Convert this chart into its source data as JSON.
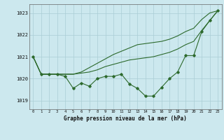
{
  "title": "Graphe pression niveau de la mer (hPa)",
  "bg_color": "#cce8ee",
  "grid_color": "#aacdd5",
  "line_color": "#2d6a2d",
  "x_labels": [
    "0",
    "1",
    "2",
    "3",
    "4",
    "5",
    "6",
    "7",
    "8",
    "9",
    "10",
    "11",
    "12",
    "13",
    "14",
    "15",
    "16",
    "17",
    "18",
    "19",
    "20",
    "21",
    "22",
    "23"
  ],
  "ylim": [
    1018.6,
    1023.4
  ],
  "yticks": [
    1019,
    1020,
    1021,
    1022,
    1023
  ],
  "series1": [
    1021.0,
    1020.2,
    1020.2,
    1020.2,
    1020.1,
    1019.55,
    1019.8,
    1019.65,
    1020.0,
    1020.1,
    1020.1,
    1020.2,
    1019.75,
    1019.55,
    1019.2,
    1019.2,
    1019.6,
    1020.0,
    1020.3,
    1021.05,
    1021.05,
    1022.15,
    1022.65,
    1023.1
  ],
  "series2": [
    1021.0,
    1020.2,
    1020.2,
    1020.2,
    1020.2,
    1020.2,
    1020.25,
    1020.3,
    1020.4,
    1020.55,
    1020.65,
    1020.75,
    1020.85,
    1020.9,
    1020.95,
    1021.0,
    1021.1,
    1021.2,
    1021.35,
    1021.55,
    1021.7,
    1022.2,
    1022.65,
    1023.1
  ],
  "series3": [
    1021.0,
    1020.2,
    1020.2,
    1020.2,
    1020.2,
    1020.2,
    1020.3,
    1020.5,
    1020.7,
    1020.9,
    1021.1,
    1021.25,
    1021.4,
    1021.55,
    1021.6,
    1021.65,
    1021.7,
    1021.8,
    1021.95,
    1022.15,
    1022.3,
    1022.7,
    1023.0,
    1023.1
  ],
  "figsize": [
    3.2,
    2.0
  ],
  "dpi": 100
}
